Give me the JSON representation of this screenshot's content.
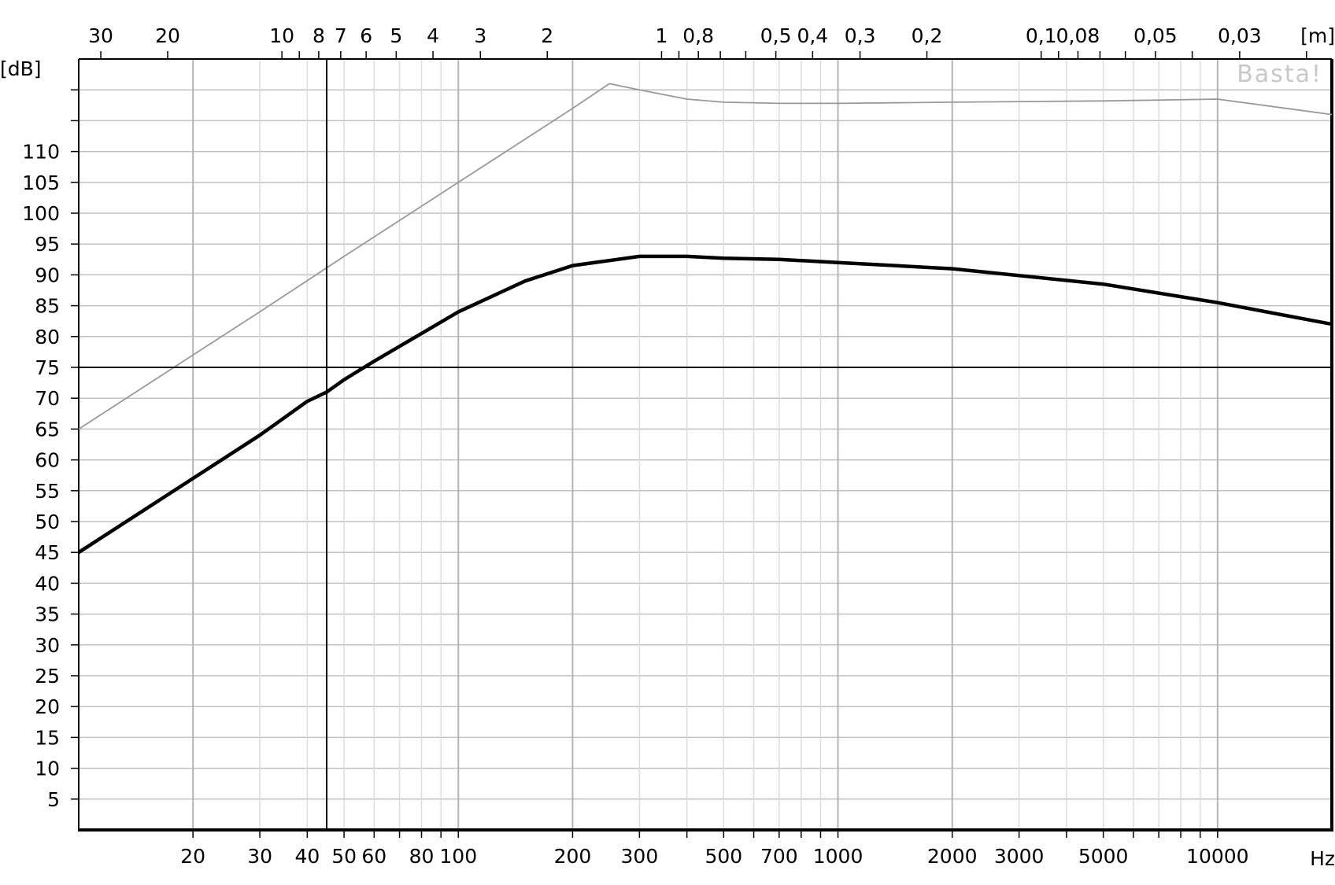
{
  "chart_data": {
    "type": "line",
    "title": "",
    "xlabel": "Hz",
    "ylabel": "[dB]",
    "x_scale": "log",
    "xlim": [
      10,
      20000
    ],
    "ylim": [
      0,
      125
    ],
    "grid": true,
    "watermark": "Basta!",
    "x_ticks": [
      "20",
      "30",
      "40",
      "50",
      "60",
      "80",
      "100",
      "200",
      "300",
      "500",
      "700",
      "1000",
      "2000",
      "3000",
      "5000",
      "10000"
    ],
    "y_ticks": [
      "5",
      "10",
      "15",
      "20",
      "25",
      "30",
      "35",
      "40",
      "45",
      "50",
      "55",
      "60",
      "65",
      "70",
      "75",
      "80",
      "85",
      "90",
      "95",
      "100",
      "105",
      "110"
    ],
    "top_axis": {
      "unit": "[m]",
      "labels": [
        "30",
        "20",
        "10",
        "8",
        "7",
        "6",
        "5",
        "4",
        "3",
        "2",
        "1",
        "0,8",
        "0,5",
        "0,4",
        "0,3",
        "0,2",
        "0,1",
        "0,08",
        "0,05",
        "0,03"
      ]
    },
    "cursor": {
      "x": 45,
      "y": 75
    },
    "series": [
      {
        "color": "#999999",
        "x": [
          10,
          20,
          30,
          50,
          100,
          200,
          250,
          300,
          400,
          500,
          700,
          1000,
          2000,
          5000,
          10000,
          20000
        ],
        "y": [
          65,
          77,
          84,
          93,
          105,
          117,
          121,
          120,
          118.5,
          118,
          117.8,
          117.8,
          118,
          118.2,
          118.5,
          116
        ]
      },
      {
        "color": "#000000",
        "x": [
          10,
          20,
          30,
          40,
          45,
          50,
          60,
          80,
          100,
          150,
          200,
          300,
          400,
          500,
          700,
          1000,
          2000,
          5000,
          10000,
          20000
        ],
        "y": [
          45,
          57,
          64,
          69.5,
          71,
          73,
          76,
          80.5,
          84,
          89,
          91.5,
          93,
          93,
          92.7,
          92.5,
          92,
          91,
          88.5,
          85.5,
          82
        ]
      }
    ]
  }
}
